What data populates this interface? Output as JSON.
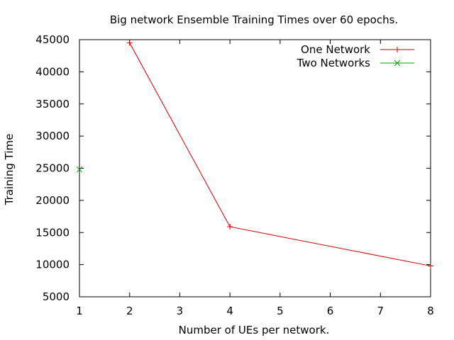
{
  "chart_data": {
    "type": "line",
    "title": "Big network Ensemble Training Times over 60 epochs.",
    "xlabel": "Number of UEs per network.",
    "ylabel": "Training Time",
    "xlim": [
      1,
      8
    ],
    "ylim": [
      5000,
      45000
    ],
    "xticks": [
      1,
      2,
      3,
      4,
      5,
      6,
      7,
      8
    ],
    "yticks": [
      5000,
      10000,
      15000,
      20000,
      25000,
      30000,
      35000,
      40000,
      45000
    ],
    "grid": false,
    "legend_position": "top-right",
    "series": [
      {
        "name": "One Network",
        "color": "#cc0000",
        "marker": "plus",
        "points": [
          {
            "x": 2,
            "y": 44500
          },
          {
            "x": 4,
            "y": 15900
          },
          {
            "x": 8,
            "y": 9800
          }
        ]
      },
      {
        "name": "Two Networks",
        "color": "#00a000",
        "marker": "cross",
        "points": [
          {
            "x": 1,
            "y": 24800
          }
        ]
      }
    ]
  }
}
